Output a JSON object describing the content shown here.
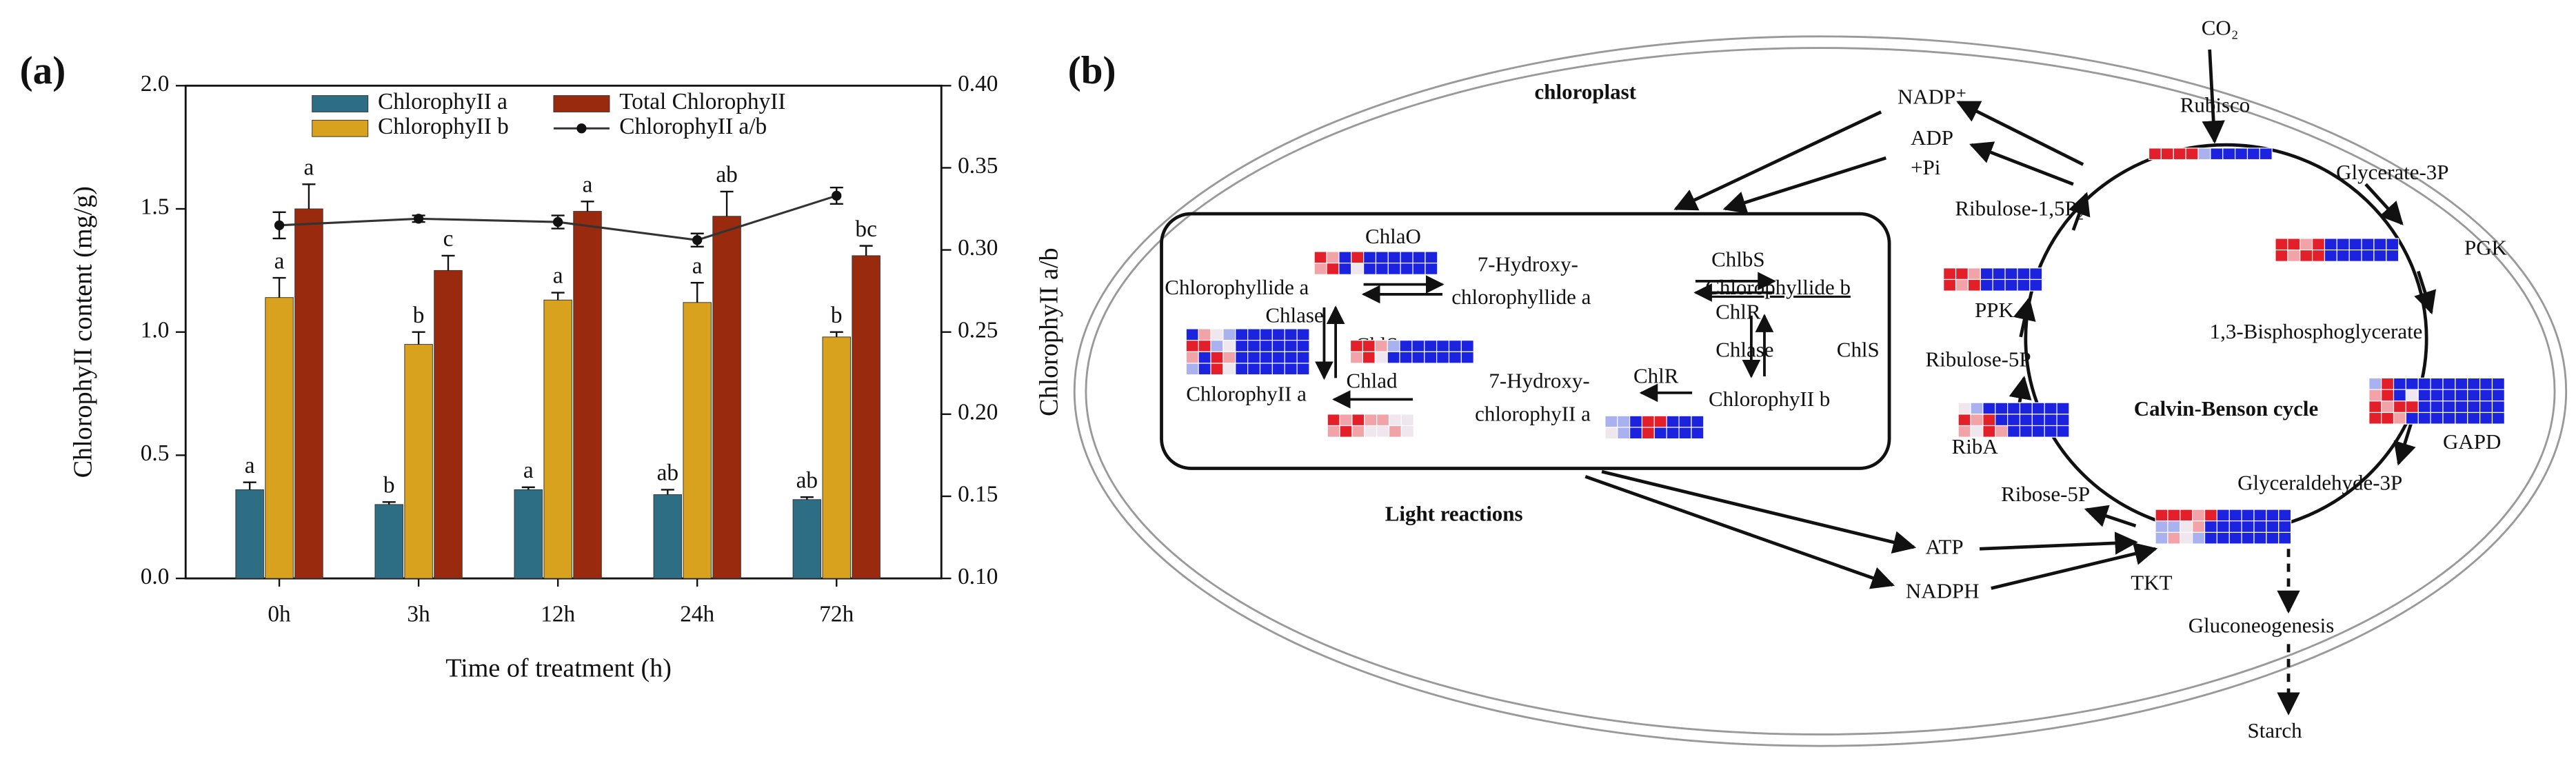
{
  "chart_data": {
    "type": "bar",
    "panel": "(a)",
    "x_label": "Time of treatment (h)",
    "y_label": "ChlorophyII content (mg/g)",
    "y2_label": "ChlorophyII a/b",
    "categories": [
      "0h",
      "3h",
      "12h",
      "24h",
      "72h"
    ],
    "series": [
      {
        "name": "ChlorophyII a",
        "color": "#2e6e85",
        "values": [
          0.36,
          0.3,
          0.36,
          0.34,
          0.32
        ],
        "errors": [
          0.03,
          0.01,
          0.01,
          0.02,
          0.01
        ],
        "letters": [
          "a",
          "b",
          "a",
          "ab",
          "ab"
        ]
      },
      {
        "name": "ChlorophyII b",
        "color": "#d8a21e",
        "values": [
          1.14,
          0.95,
          1.13,
          1.12,
          0.98
        ],
        "errors": [
          0.08,
          0.05,
          0.03,
          0.08,
          0.02
        ],
        "letters": [
          "a",
          "b",
          "a",
          "a",
          "b"
        ]
      },
      {
        "name": "Total ChlorophyII",
        "color": "#9a2a0e",
        "values": [
          1.5,
          1.25,
          1.49,
          1.47,
          1.31
        ],
        "errors": [
          0.1,
          0.06,
          0.04,
          0.1,
          0.04
        ],
        "letters": [
          "a",
          "c",
          "a",
          "ab",
          "bc"
        ]
      },
      {
        "name": "ChlorophyII a/b",
        "type": "line",
        "axis": "y2",
        "color": "#333333",
        "values": [
          0.315,
          0.319,
          0.317,
          0.306,
          0.333
        ],
        "errors": [
          0.008,
          0.002,
          0.004,
          0.004,
          0.005
        ]
      }
    ],
    "ylim": [
      0,
      2
    ],
    "yticks": [
      {
        "value": 0,
        "label": "0.0"
      },
      0.5,
      {
        "value": 1,
        "label": "1.0"
      },
      1.5,
      {
        "value": 2,
        "label": "2.0"
      }
    ],
    "y2lim": [
      0.1,
      0.4
    ],
    "y2ticks": [
      {
        "value": 0.1,
        "label": "0.10"
      },
      0.15,
      {
        "value": 0.2,
        "label": "0.20"
      },
      0.25,
      {
        "value": 0.3,
        "label": "0.30"
      },
      0.35,
      {
        "value": 0.4,
        "label": "0.40"
      }
    ],
    "legend": "top"
  },
  "diagram": {
    "nodes": [
      "(b)",
      "chloroplast",
      "CO₂",
      "Rubisco",
      "NADP⁺",
      "ADP",
      "+Pi",
      "Glycerate-3P",
      "PGK",
      "1,3-Bisphosphoglycerate",
      "GAPD",
      "Glyceraldehyde-3P",
      "Calvin-Benson cycle",
      "Ribulose-1,5P₂",
      "PPK",
      "Ribulose-5P",
      "RibA",
      "Ribose-5P",
      "TKT",
      "ATP",
      "NADPH",
      "Gluconeogenesis",
      "Starch",
      "Light reactions",
      "ChlaO",
      "Chlorophyllide a",
      "7-Hydroxy-",
      "chlorophyllide a",
      "ChlbS",
      "ChlR",
      "Chlorophyllide b",
      "Chlase",
      "ChlS",
      "Chlase",
      "ChlS",
      "ChlorophyII a",
      "Chlad",
      "7-Hydroxy-",
      "chlorophyII a",
      "ChlR",
      "ChlorophyII b"
    ]
  }
}
